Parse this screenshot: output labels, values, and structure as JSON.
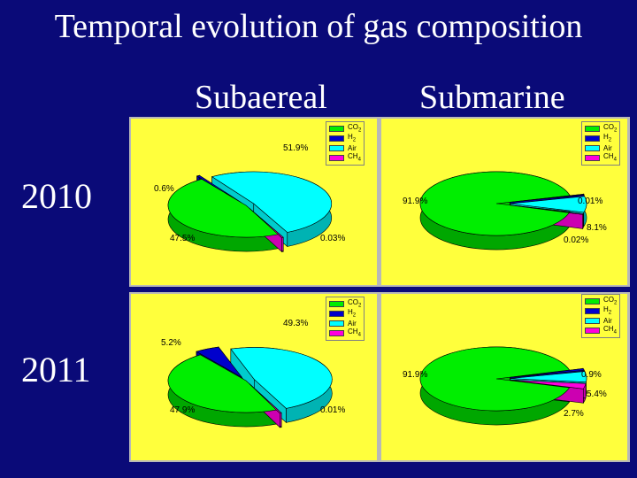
{
  "title": "Temporal evolution of gas composition",
  "columns": [
    "Subaereal",
    "Submarine"
  ],
  "rows": [
    "2010",
    "2011"
  ],
  "colors": {
    "CO2": "#00ee00",
    "H2": "#0000cc",
    "Air": "#00ffff",
    "CH4": "#ff00dd"
  },
  "chart_data": [
    {
      "type": "pie",
      "year": "2010",
      "site": "Subaereal",
      "categories": [
        "CO2",
        "H2",
        "Air",
        "CH4"
      ],
      "legend": [
        "CO2",
        "H2",
        "Air",
        "CH4"
      ],
      "values": [
        47.5,
        0.6,
        51.9,
        0.03
      ],
      "labels": [
        "47.5%",
        "0.6%",
        "51.9%",
        "0.03%"
      ]
    },
    {
      "type": "pie",
      "year": "2010",
      "site": "Submarine",
      "categories": [
        "CO2",
        "H2",
        "Air",
        "CH4"
      ],
      "legend": [
        "CO2",
        "H2",
        "Air",
        "CH4"
      ],
      "values": [
        91.9,
        0.01,
        8.1,
        0.02
      ],
      "labels": [
        "91.9%",
        "0.01%",
        "8.1%",
        "0.02%"
      ]
    },
    {
      "type": "pie",
      "year": "2011",
      "site": "Subaereal",
      "categories": [
        "CO2",
        "H2",
        "Air",
        "CH4"
      ],
      "legend": [
        "CO2",
        "H2",
        "Air",
        "CH4"
      ],
      "values": [
        47.9,
        5.2,
        49.3,
        0.01
      ],
      "labels": [
        "47.9%",
        "5.2%",
        "49.3%",
        "0.01%"
      ]
    },
    {
      "type": "pie",
      "year": "2011",
      "site": "Submarine",
      "categories": [
        "CO2",
        "H2",
        "Air",
        "CH4"
      ],
      "legend": [
        "CO2",
        "H2",
        "Air",
        "CH4"
      ],
      "values": [
        91.9,
        0.9,
        5.4,
        2.7
      ],
      "labels": [
        "91.9%",
        "0.9%",
        "5.4%",
        "2.7%"
      ]
    }
  ]
}
